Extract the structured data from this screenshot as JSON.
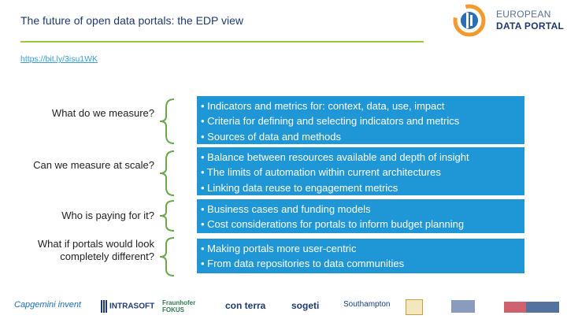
{
  "header": {
    "title": "The future of open data portals: the EDP view",
    "link": "https://bit.ly/3isu1WK"
  },
  "logo": {
    "line1": "EUROPEAN",
    "line2": "DATA PORTAL",
    "colors": {
      "orange": "#f29a2e",
      "blue": "#2c6db5",
      "navy": "#1f3a6e"
    }
  },
  "rows": [
    {
      "question": "What do we measure?",
      "points": [
        "• Indicators and metrics for: context, data, use, impact",
        "• Criteria for defining and selecting indicators and metrics",
        "• Sources of data and methods"
      ]
    },
    {
      "question": "Can we measure at scale?",
      "points": [
        "• Balance between resources available and depth of insight",
        "• The limits of automation within current architectures",
        "• Linking data reuse to engagement metrics"
      ]
    },
    {
      "question": "Who is paying for it?",
      "points": [
        "• Business cases and funding models",
        "• Cost considerations for portals to inform budget planning"
      ]
    },
    {
      "question": "What if portals would look completely different?",
      "points": [
        "• Making portals more user-centric",
        "• From data repositories to data communities"
      ]
    }
  ],
  "partners": {
    "capgemini": "Capgemini invent",
    "intrasoft": "INTRASOFT",
    "fraunhofer_1": "Fraunhofer",
    "fraunhofer_2": "FOKUS",
    "conterra": "con terra",
    "sogeti": "sogeti",
    "southampton": "Southampton"
  },
  "colors": {
    "title": "#1f3a6e",
    "rule": "#9bc83a",
    "link": "#3a9bd5",
    "box": "#1f97d6",
    "brace": "#6aa84f"
  }
}
